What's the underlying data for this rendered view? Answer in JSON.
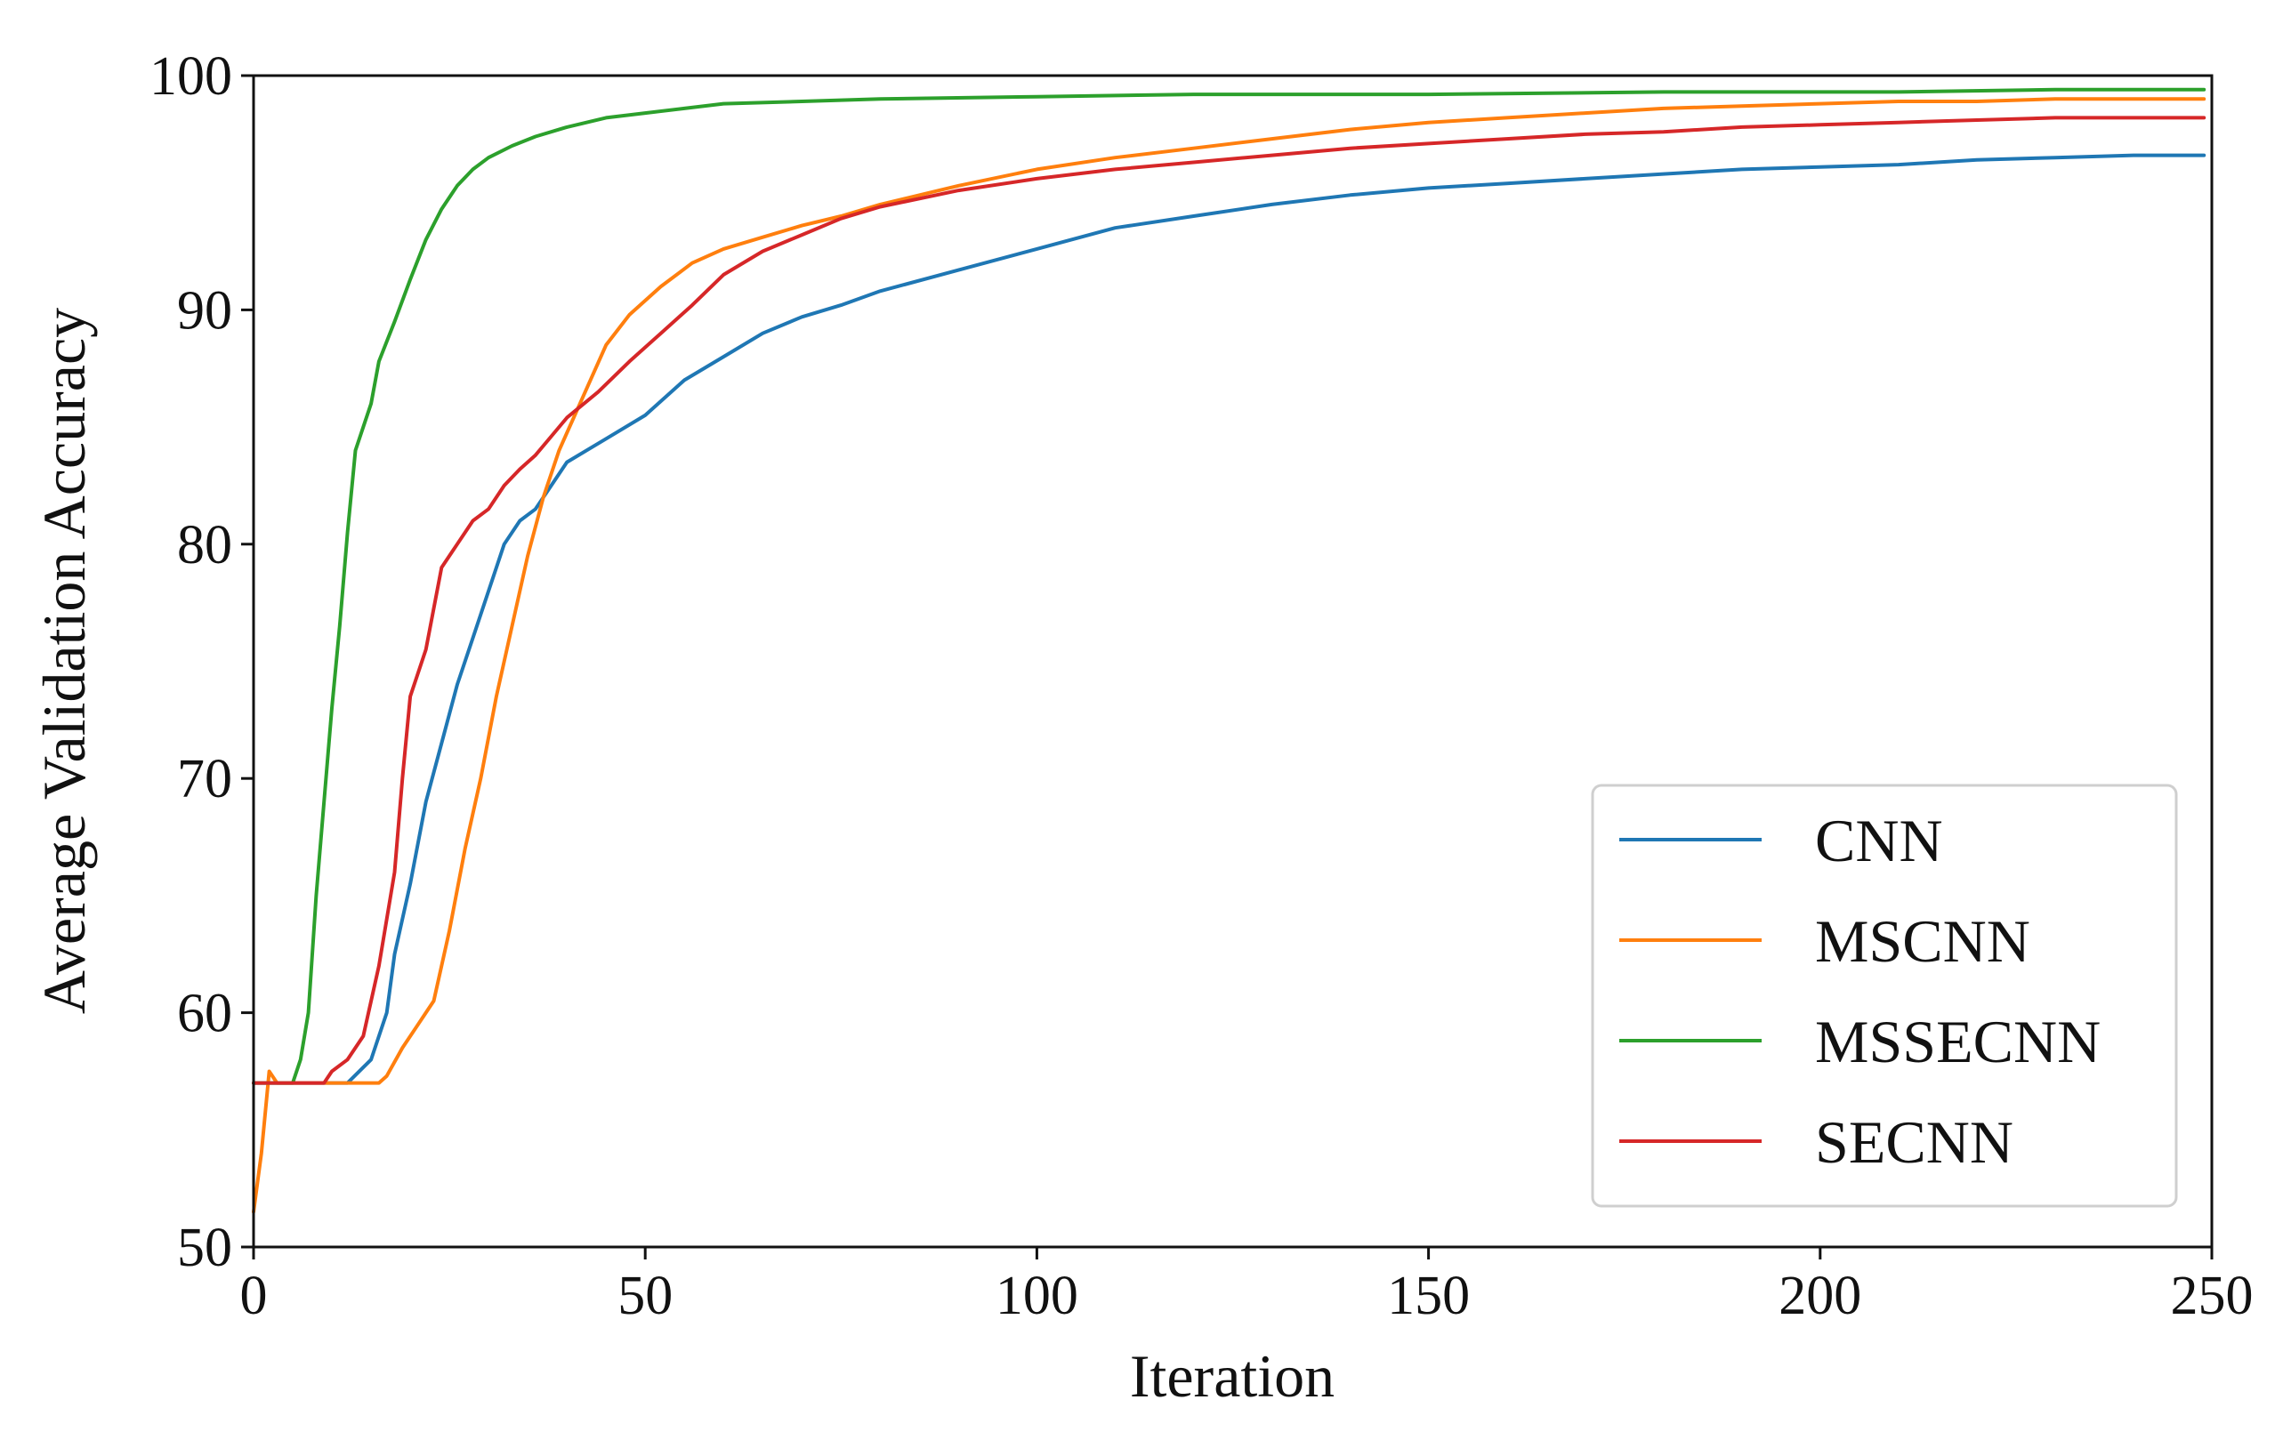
{
  "chart_data": {
    "type": "line",
    "title": "",
    "xlabel": "Iteration",
    "ylabel": "Average Validation Accuracy",
    "xlim": [
      0,
      250
    ],
    "ylim": [
      50,
      100
    ],
    "xticks": [
      0,
      50,
      100,
      150,
      200,
      250
    ],
    "yticks": [
      50,
      60,
      70,
      80,
      90,
      100
    ],
    "xtick_labels": [
      "0",
      "50",
      "100",
      "150",
      "200",
      "250"
    ],
    "ytick_labels": [
      "50",
      "60",
      "70",
      "80",
      "90",
      "100"
    ],
    "grid": false,
    "legend_position": "lower-right",
    "series": [
      {
        "name": "CNN",
        "color": "#1f77b4",
        "points": [
          [
            0,
            57
          ],
          [
            12,
            57
          ],
          [
            15,
            58
          ],
          [
            17,
            60
          ],
          [
            18,
            62.5
          ],
          [
            20,
            65.5
          ],
          [
            22,
            69
          ],
          [
            24,
            71.5
          ],
          [
            26,
            74
          ],
          [
            28,
            76
          ],
          [
            30,
            78
          ],
          [
            32,
            80
          ],
          [
            34,
            81
          ],
          [
            36,
            81.5
          ],
          [
            38,
            82.5
          ],
          [
            40,
            83.5
          ],
          [
            45,
            84.5
          ],
          [
            50,
            85.5
          ],
          [
            55,
            87
          ],
          [
            60,
            88
          ],
          [
            65,
            89
          ],
          [
            70,
            89.7
          ],
          [
            75,
            90.2
          ],
          [
            80,
            90.8
          ],
          [
            90,
            91.7
          ],
          [
            100,
            92.6
          ],
          [
            110,
            93.5
          ],
          [
            120,
            94
          ],
          [
            130,
            94.5
          ],
          [
            140,
            94.9
          ],
          [
            150,
            95.2
          ],
          [
            160,
            95.4
          ],
          [
            170,
            95.6
          ],
          [
            180,
            95.8
          ],
          [
            190,
            96
          ],
          [
            200,
            96.1
          ],
          [
            210,
            96.2
          ],
          [
            220,
            96.4
          ],
          [
            230,
            96.5
          ],
          [
            240,
            96.6
          ],
          [
            249,
            96.6
          ]
        ]
      },
      {
        "name": "MSCNN",
        "color": "#ff7f0e",
        "points": [
          [
            0,
            51.5
          ],
          [
            1,
            54
          ],
          [
            2,
            57.5
          ],
          [
            3,
            57
          ],
          [
            16,
            57
          ],
          [
            17,
            57.3
          ],
          [
            19,
            58.5
          ],
          [
            21,
            59.5
          ],
          [
            23,
            60.5
          ],
          [
            25,
            63.5
          ],
          [
            27,
            67
          ],
          [
            29,
            70
          ],
          [
            31,
            73.5
          ],
          [
            33,
            76.5
          ],
          [
            35,
            79.5
          ],
          [
            37,
            82
          ],
          [
            39,
            84
          ],
          [
            41,
            85.5
          ],
          [
            43,
            87
          ],
          [
            45,
            88.5
          ],
          [
            48,
            89.8
          ],
          [
            52,
            91
          ],
          [
            56,
            92
          ],
          [
            60,
            92.6
          ],
          [
            65,
            93.1
          ],
          [
            70,
            93.6
          ],
          [
            75,
            94
          ],
          [
            80,
            94.5
          ],
          [
            90,
            95.3
          ],
          [
            100,
            96
          ],
          [
            110,
            96.5
          ],
          [
            120,
            96.9
          ],
          [
            130,
            97.3
          ],
          [
            140,
            97.7
          ],
          [
            150,
            98
          ],
          [
            160,
            98.2
          ],
          [
            170,
            98.4
          ],
          [
            180,
            98.6
          ],
          [
            190,
            98.7
          ],
          [
            200,
            98.8
          ],
          [
            210,
            98.9
          ],
          [
            220,
            98.9
          ],
          [
            230,
            99
          ],
          [
            240,
            99
          ],
          [
            249,
            99
          ]
        ]
      },
      {
        "name": "MSSECNN",
        "color": "#2ca02c",
        "points": [
          [
            0,
            57
          ],
          [
            5,
            57
          ],
          [
            6,
            58
          ],
          [
            7,
            60
          ],
          [
            8,
            65
          ],
          [
            9,
            69
          ],
          [
            10,
            73
          ],
          [
            11,
            76.5
          ],
          [
            12,
            80.5
          ],
          [
            13,
            84
          ],
          [
            15,
            86
          ],
          [
            16,
            87.8
          ],
          [
            18,
            89.5
          ],
          [
            20,
            91.3
          ],
          [
            22,
            93
          ],
          [
            24,
            94.3
          ],
          [
            26,
            95.3
          ],
          [
            28,
            96
          ],
          [
            30,
            96.5
          ],
          [
            33,
            97
          ],
          [
            36,
            97.4
          ],
          [
            40,
            97.8
          ],
          [
            45,
            98.2
          ],
          [
            50,
            98.4
          ],
          [
            55,
            98.6
          ],
          [
            60,
            98.8
          ],
          [
            70,
            98.9
          ],
          [
            80,
            99
          ],
          [
            100,
            99.1
          ],
          [
            120,
            99.2
          ],
          [
            150,
            99.2
          ],
          [
            180,
            99.3
          ],
          [
            210,
            99.3
          ],
          [
            230,
            99.4
          ],
          [
            249,
            99.4
          ]
        ]
      },
      {
        "name": "SECNN",
        "color": "#d62728",
        "points": [
          [
            0,
            57
          ],
          [
            9,
            57
          ],
          [
            10,
            57.5
          ],
          [
            12,
            58
          ],
          [
            14,
            59
          ],
          [
            16,
            62
          ],
          [
            18,
            66
          ],
          [
            19,
            70
          ],
          [
            20,
            73.5
          ],
          [
            22,
            75.5
          ],
          [
            24,
            79
          ],
          [
            26,
            80
          ],
          [
            28,
            81
          ],
          [
            30,
            81.5
          ],
          [
            32,
            82.5
          ],
          [
            34,
            83.2
          ],
          [
            36,
            83.8
          ],
          [
            38,
            84.6
          ],
          [
            40,
            85.4
          ],
          [
            44,
            86.5
          ],
          [
            48,
            87.8
          ],
          [
            52,
            89
          ],
          [
            56,
            90.2
          ],
          [
            60,
            91.5
          ],
          [
            65,
            92.5
          ],
          [
            70,
            93.2
          ],
          [
            75,
            93.9
          ],
          [
            80,
            94.4
          ],
          [
            90,
            95.1
          ],
          [
            100,
            95.6
          ],
          [
            110,
            96
          ],
          [
            120,
            96.3
          ],
          [
            130,
            96.6
          ],
          [
            140,
            96.9
          ],
          [
            150,
            97.1
          ],
          [
            160,
            97.3
          ],
          [
            170,
            97.5
          ],
          [
            180,
            97.6
          ],
          [
            190,
            97.8
          ],
          [
            200,
            97.9
          ],
          [
            210,
            98
          ],
          [
            220,
            98.1
          ],
          [
            230,
            98.2
          ],
          [
            240,
            98.2
          ],
          [
            249,
            98.2
          ]
        ]
      }
    ]
  }
}
